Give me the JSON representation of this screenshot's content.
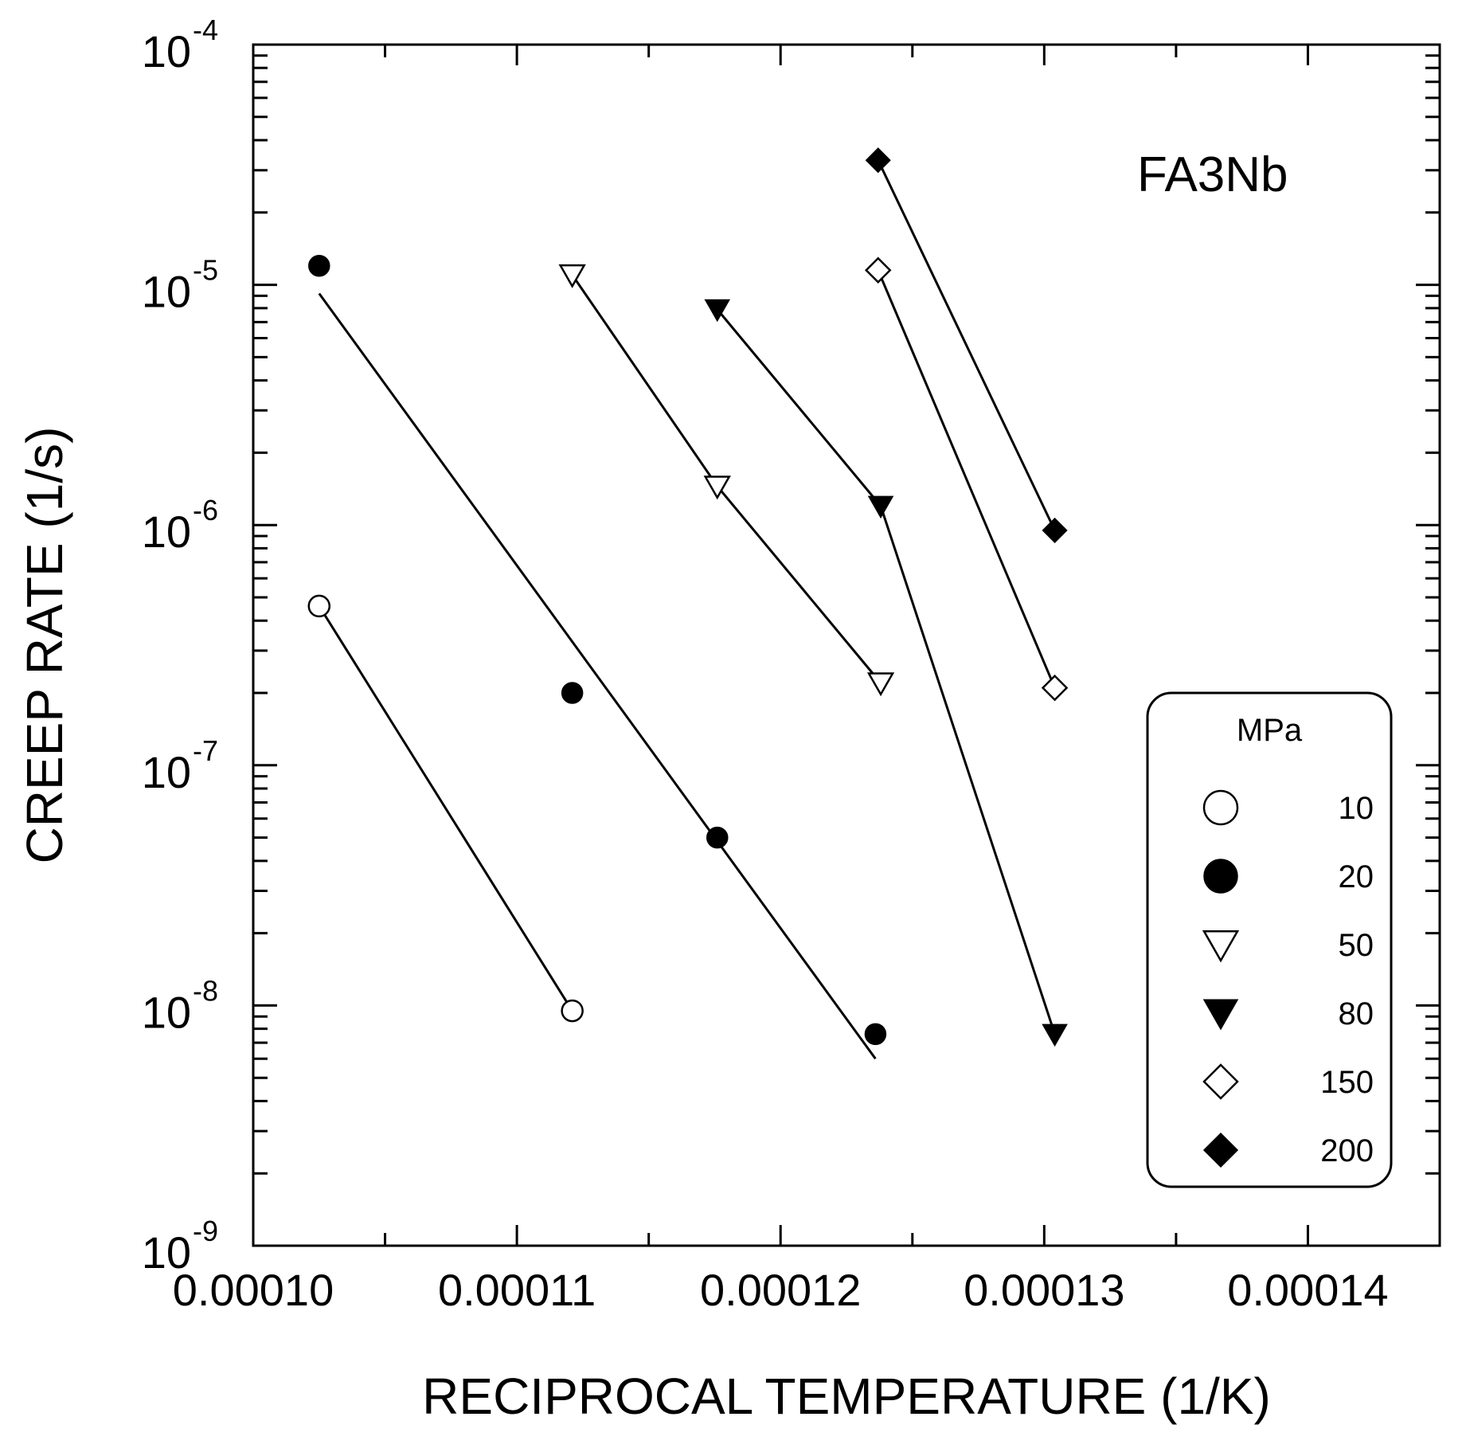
{
  "chart_data": {
    "type": "scatter",
    "title": "",
    "xlabel": "RECIPROCAL TEMPERATURE (1/K)",
    "ylabel": "CREEP RATE (1/s)",
    "xlim": [
      0.0001,
      0.000145
    ],
    "ylim": [
      1e-09,
      0.0001
    ],
    "yscale": "log",
    "grid": false,
    "x_tick_values": [
      0.0001,
      0.00011,
      0.00012,
      0.00013,
      0.00014
    ],
    "x_tick_labels": [
      "0.00010",
      "0.00011",
      "0.00012",
      "0.00013",
      "0.00014"
    ],
    "y_tick_values": [
      1e-09,
      1e-08,
      1e-07,
      1e-06,
      1e-05,
      0.0001
    ],
    "y_tick_labels": [
      {
        "base": "10",
        "exp": "-9"
      },
      {
        "base": "10",
        "exp": "-8"
      },
      {
        "base": "10",
        "exp": "-7"
      },
      {
        "base": "10",
        "exp": "-6"
      },
      {
        "base": "10",
        "exp": "-5"
      },
      {
        "base": "10",
        "exp": "-4"
      }
    ],
    "annotation": "FA3Nb",
    "legend": {
      "title": "MPa",
      "position": "bottom-right"
    },
    "series": [
      {
        "name": "10",
        "marker": "circle-open",
        "points": [
          [
            0.0001025,
            4.6e-07
          ],
          [
            0.0001121,
            9.5e-09
          ]
        ],
        "fit": [
          [
            0.0001025,
            4.6e-07
          ],
          [
            0.0001121,
            9.5e-09
          ]
        ]
      },
      {
        "name": "20",
        "marker": "circle-filled",
        "points": [
          [
            0.0001025,
            1.2e-05
          ],
          [
            0.0001121,
            2e-07
          ],
          [
            0.0001176,
            5e-08
          ],
          [
            0.0001236,
            7.6e-09
          ]
        ],
        "fit": [
          [
            0.0001025,
            9.2e-06
          ],
          [
            0.0001236,
            6e-09
          ]
        ]
      },
      {
        "name": "50",
        "marker": "triangle-down-open",
        "points": [
          [
            0.0001121,
            1.1e-05
          ],
          [
            0.0001176,
            1.45e-06
          ],
          [
            0.0001238,
            2.2e-07
          ]
        ],
        "fit": [
          [
            0.0001121,
            1.1e-05
          ],
          [
            0.0001176,
            1.45e-06
          ],
          [
            0.0001238,
            2.2e-07
          ]
        ]
      },
      {
        "name": "80",
        "marker": "triangle-down-filled",
        "points": [
          [
            0.0001176,
            7.9e-06
          ],
          [
            0.0001238,
            1.2e-06
          ],
          [
            0.0001304,
            7.6e-09
          ]
        ],
        "fit": [
          [
            0.0001176,
            7.9e-06
          ],
          [
            0.0001238,
            1.2e-06
          ],
          [
            0.0001304,
            7.6e-09
          ]
        ]
      },
      {
        "name": "150",
        "marker": "diamond-open",
        "points": [
          [
            0.0001237,
            1.15e-05
          ],
          [
            0.0001304,
            2.1e-07
          ]
        ],
        "fit": [
          [
            0.0001237,
            1.15e-05
          ],
          [
            0.0001304,
            2.1e-07
          ]
        ]
      },
      {
        "name": "200",
        "marker": "diamond-filled",
        "points": [
          [
            0.0001237,
            3.3e-05
          ],
          [
            0.0001304,
            9.5e-07
          ]
        ],
        "fit": [
          [
            0.0001237,
            3.3e-05
          ],
          [
            0.0001304,
            9.5e-07
          ]
        ]
      }
    ]
  }
}
